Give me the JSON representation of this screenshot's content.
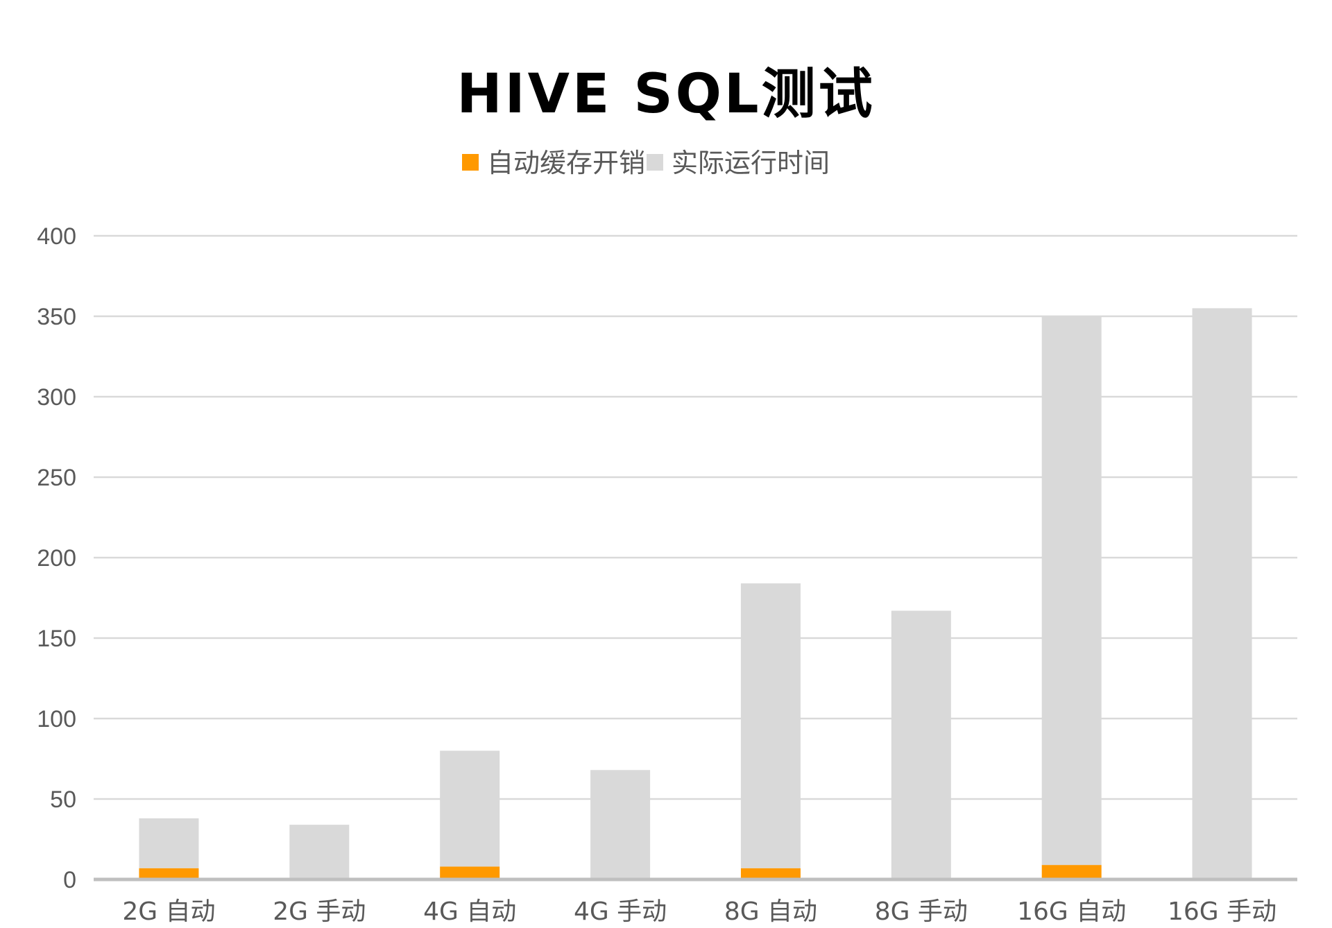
{
  "colors": {
    "cache_overhead": "#ff9900",
    "actual_runtime": "#d9d9d9",
    "gridline": "#d9d9d9",
    "axis": "#bfbfbf",
    "text": "#595959",
    "title": "#000000"
  },
  "chart_data": {
    "type": "bar",
    "stacked": true,
    "title": "HIVE SQL测试",
    "xlabel": "",
    "ylabel": "",
    "ylim": [
      0,
      400
    ],
    "yticks": [
      0,
      50,
      100,
      150,
      200,
      250,
      300,
      350,
      400
    ],
    "grid": true,
    "legend_position": "top",
    "categories": [
      "2G 自动",
      "2G 手动",
      "4G 自动",
      "4G 手动",
      "8G 自动",
      "8G 手动",
      "16G 自动",
      "16G 手动"
    ],
    "series": [
      {
        "name": "自动缓存开销",
        "color": "#ff9900",
        "values": [
          7,
          0,
          8,
          0,
          7,
          0,
          9,
          0
        ]
      },
      {
        "name": "实际运行时间",
        "color": "#d9d9d9",
        "values": [
          31,
          34,
          72,
          68,
          177,
          167,
          341,
          355
        ]
      }
    ]
  }
}
